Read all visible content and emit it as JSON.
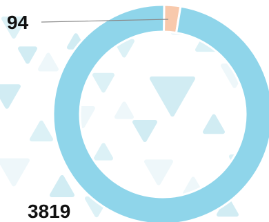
{
  "chart_data": {
    "type": "pie",
    "style": "donut",
    "title": "",
    "categories": [
      "",
      ""
    ],
    "values": [
      94,
      3819
    ],
    "colors": [
      "#f8c9ac",
      "#8fd5ea"
    ],
    "data_labels": [
      "94",
      "3819"
    ],
    "legend": "none",
    "start": "top"
  },
  "background": {
    "pattern": "light-blue-triangles",
    "colors": [
      "#eaf6fa",
      "#d4eef5",
      "#c6e8f1"
    ]
  }
}
